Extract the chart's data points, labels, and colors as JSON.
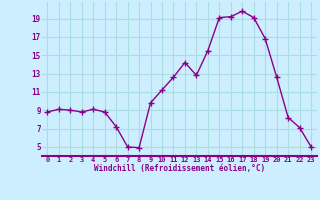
{
  "x": [
    0,
    1,
    2,
    3,
    4,
    5,
    6,
    7,
    8,
    9,
    10,
    11,
    12,
    13,
    14,
    15,
    16,
    17,
    18,
    19,
    20,
    21,
    22,
    23
  ],
  "y": [
    8.8,
    9.1,
    9.0,
    8.8,
    9.1,
    8.8,
    7.2,
    5.0,
    4.9,
    9.8,
    11.2,
    12.6,
    14.2,
    12.8,
    15.5,
    19.1,
    19.2,
    19.8,
    19.1,
    16.8,
    12.6,
    8.2,
    7.1,
    5.0
  ],
  "line_color": "#8B008B",
  "marker": "+",
  "marker_size": 4,
  "bg_color": "#cceeff",
  "grid_color": "#aadddd",
  "xlabel": "Windchill (Refroidissement éolien,°C)",
  "xlabel_color": "#8B008B",
  "tick_color": "#8B008B",
  "ylim": [
    4.0,
    20.8
  ],
  "yticks": [
    5,
    7,
    9,
    11,
    13,
    15,
    17,
    19
  ],
  "xlim": [
    -0.5,
    23.5
  ],
  "xticks": [
    0,
    1,
    2,
    3,
    4,
    5,
    6,
    7,
    8,
    9,
    10,
    11,
    12,
    13,
    14,
    15,
    16,
    17,
    18,
    19,
    20,
    21,
    22,
    23
  ],
  "spine_color": "#8B008B"
}
